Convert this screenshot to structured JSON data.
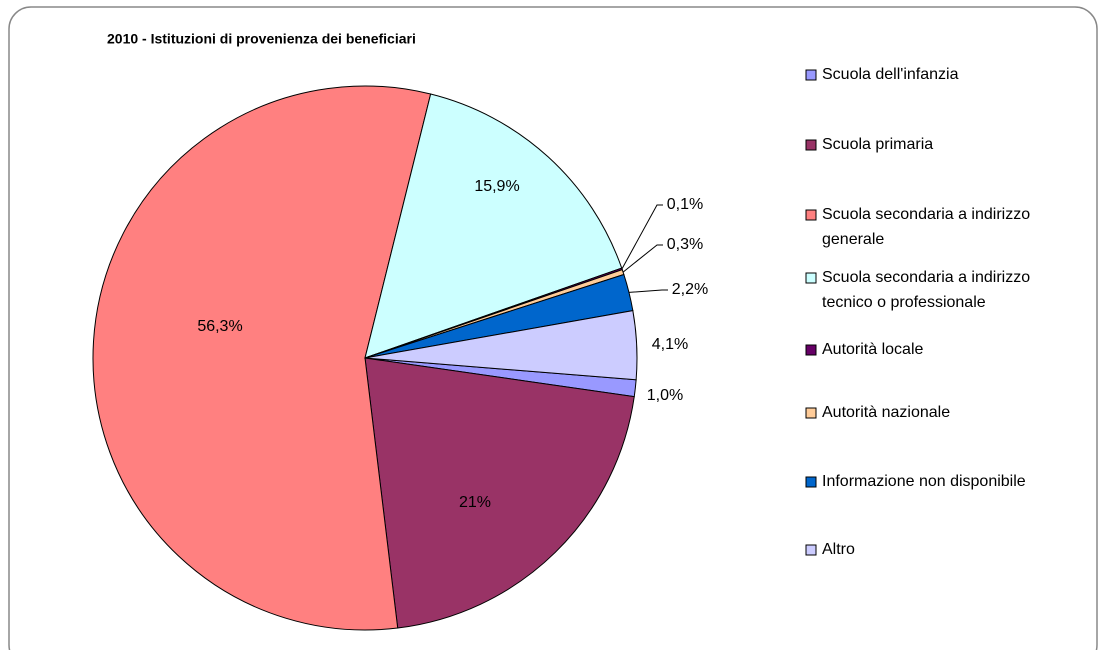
{
  "chart_data": {
    "type": "pie",
    "title": "2010 - Istituzioni di provenienza dei beneficiari",
    "categories": [
      "Scuola dell'infanzia",
      "Scuola primaria",
      "Scuola secondaria a indirizzo generale",
      "Scuola secondaria a indirizzo tecnico o professionale",
      "Autorità locale",
      "Autorità nazionale",
      "Informazione non disponibile",
      "Altro"
    ],
    "values": [
      1.0,
      21,
      56.3,
      15.9,
      0.1,
      0.3,
      2.2,
      4.1
    ],
    "value_labels": [
      "1,0%",
      "21%",
      "56,3%",
      "15,9%",
      "0,1%",
      "0,3%",
      "2,2%",
      "4,1%"
    ],
    "colors": [
      "#9999FF",
      "#993366",
      "#FF8080",
      "#CCFFFF",
      "#660066",
      "#FFCC99",
      "#0066CC",
      "#CCCCFF"
    ],
    "legend": "right"
  }
}
